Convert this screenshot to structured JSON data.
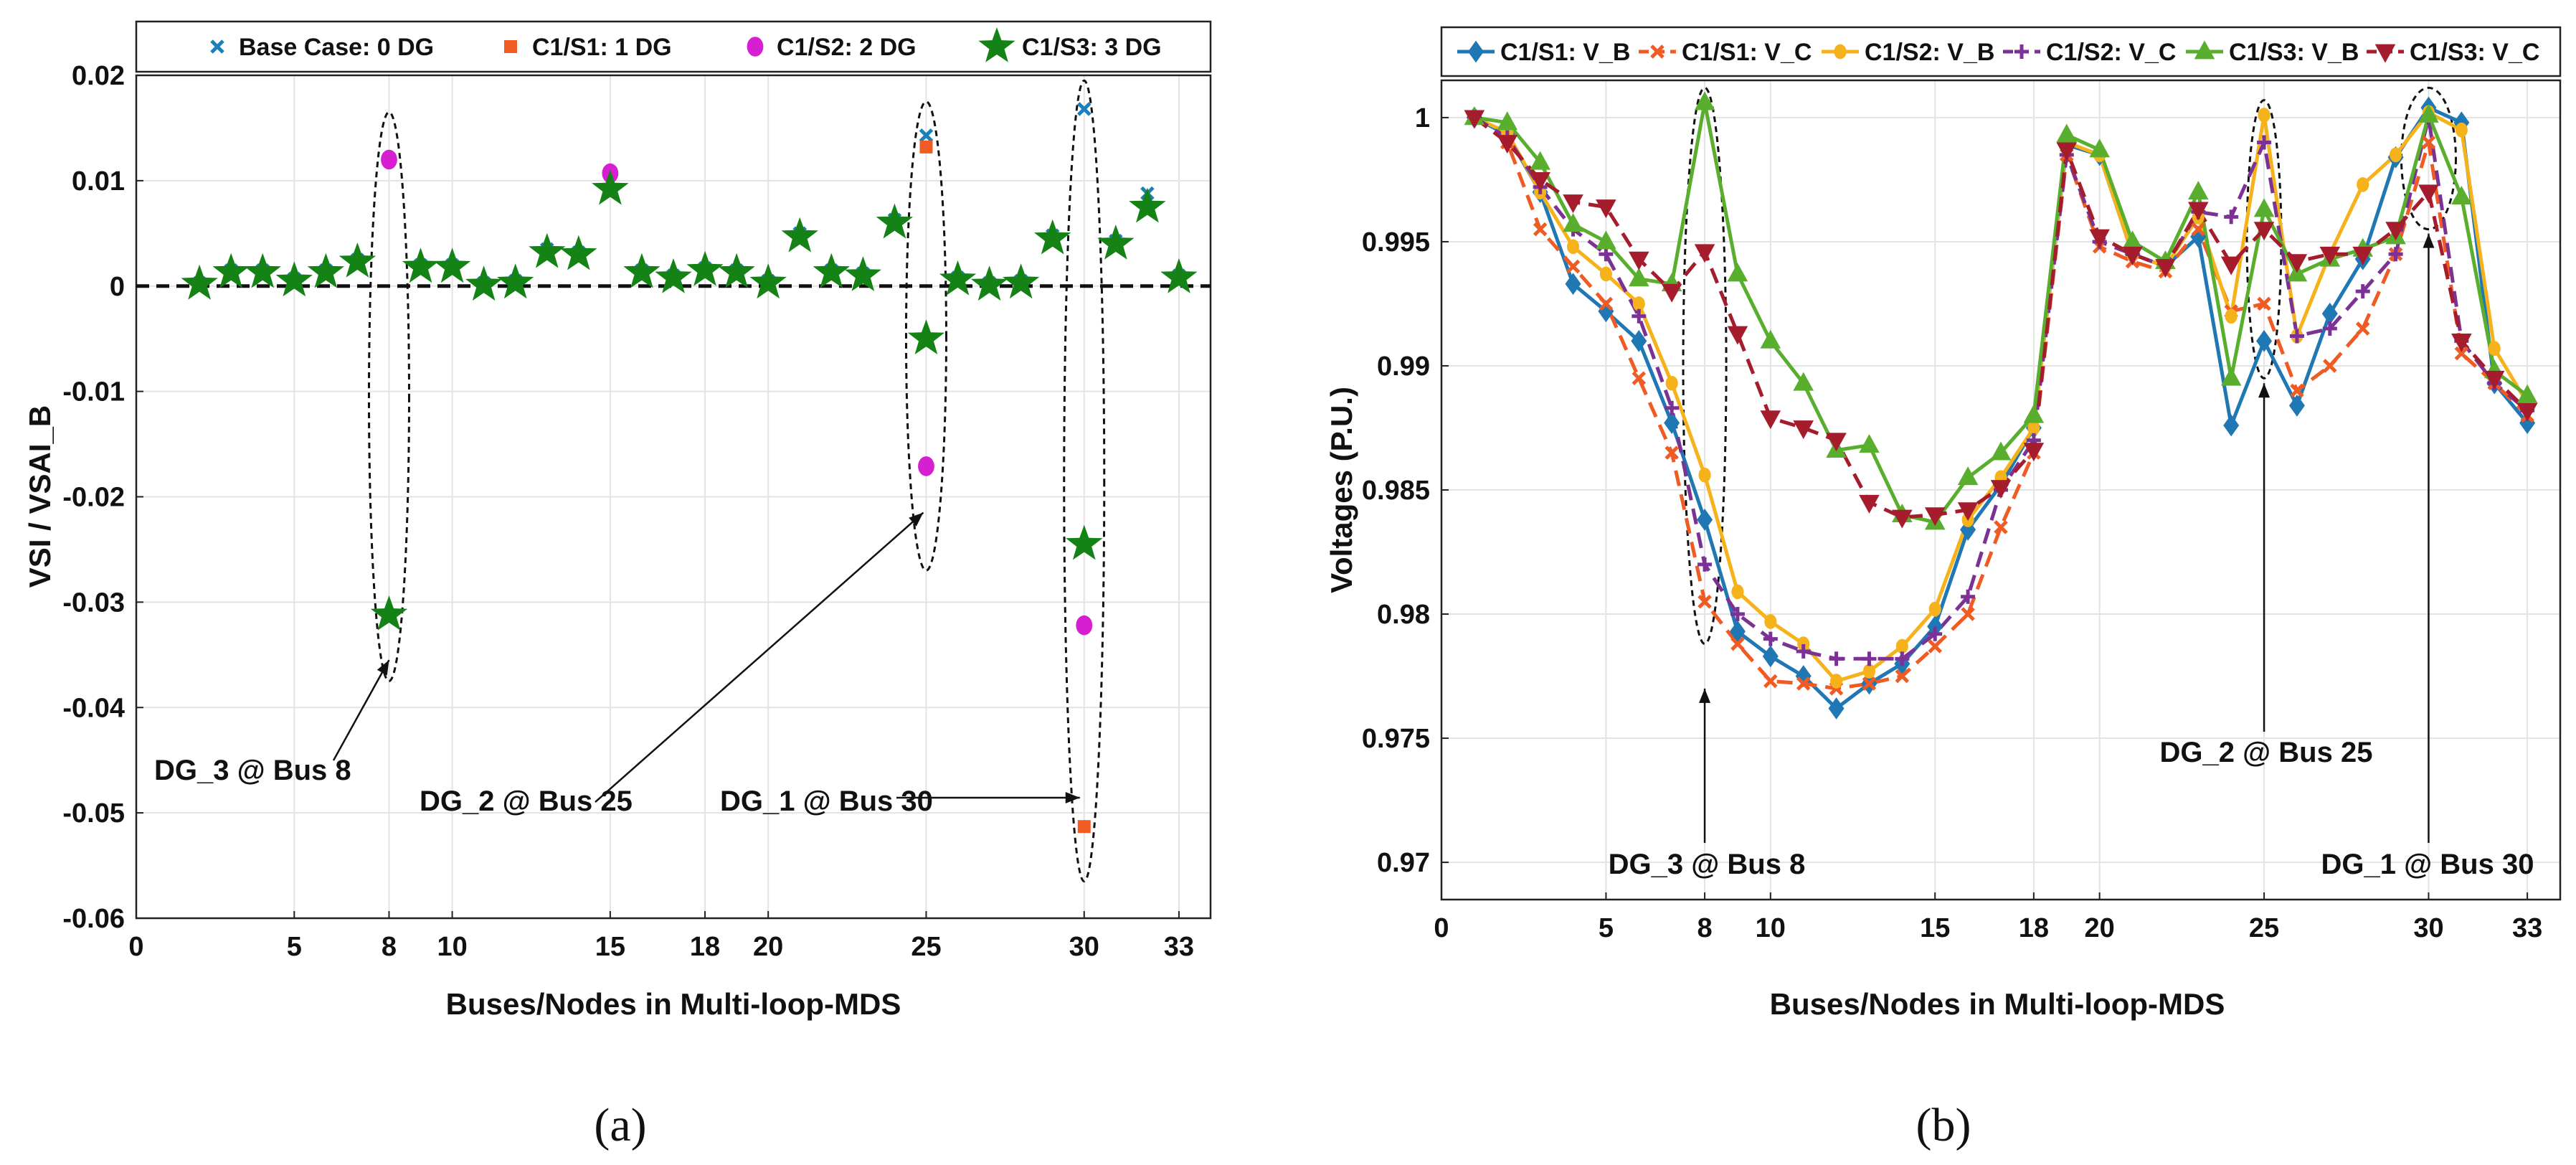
{
  "captions": {
    "a": "(a)",
    "b": "(b)"
  },
  "annotations_a": [
    "DG_3 @ Bus 8",
    "DG_2 @ Bus 25",
    "DG_1 @ Bus 30"
  ],
  "annotations_b": [
    "DG_3 @ Bus 8",
    "DG_2 @ Bus 25",
    "DG_1 @ Bus 30"
  ],
  "colors": {
    "blue": "#1f77b4",
    "orange": "#f05a23",
    "magenta": "#d61fd0",
    "green": "#148214",
    "yellow": "#f5b21b",
    "purple": "#7b3294",
    "lgreen": "#5aae2e",
    "red": "#a51d2d",
    "cyan": "#1d7fb8"
  },
  "chart_data": [
    {
      "type": "scatter",
      "xlabel": "Buses/Nodes in Multi-loop-MDS",
      "ylabel": "VSI / VSAI_B",
      "xlim": [
        0,
        34
      ],
      "ylim": [
        -0.06,
        0.02
      ],
      "xticks": [
        0,
        5,
        8,
        10,
        15,
        18,
        20,
        25,
        30,
        33
      ],
      "yticks": [
        -0.06,
        -0.05,
        -0.04,
        -0.03,
        -0.02,
        -0.01,
        0,
        0.01,
        0.02
      ],
      "ytick_labels": [
        "-0.06",
        "-0.05",
        "-0.04",
        "-0.03",
        "-0.02",
        "-0.01",
        "0",
        "0.01",
        "0.02"
      ],
      "reference_line": 0,
      "series": [
        {
          "name": "Base Case: 0 DG",
          "marker": "x",
          "color": "#1d7fb8",
          "x": [
            2,
            3,
            4,
            5,
            6,
            7,
            8,
            9,
            10,
            11,
            12,
            13,
            14,
            15,
            16,
            17,
            18,
            19,
            20,
            21,
            22,
            23,
            24,
            25,
            26,
            27,
            28,
            29,
            30,
            31,
            32,
            33
          ],
          "y": [
            0.0003,
            0.0015,
            0.0015,
            0.0007,
            0.0015,
            0.0025,
            0.0121,
            0.002,
            0.002,
            0.0003,
            0.0005,
            0.0035,
            0.0032,
            0.0108,
            0.0015,
            0.001,
            0.0017,
            0.0015,
            0.0005,
            0.005,
            0.0015,
            0.0012,
            0.0063,
            0.0143,
            0.0008,
            0.0003,
            0.0005,
            0.0048,
            0.0168,
            0.0043,
            0.0088,
            0.001
          ]
        },
        {
          "name": "C1/S1: 1 DG",
          "marker": "square",
          "color": "#f05a23",
          "x": [
            25,
            30
          ],
          "y": [
            0.0132,
            -0.0513
          ]
        },
        {
          "name": "C1/S2: 2 DG",
          "marker": "circle",
          "color": "#d61fd0",
          "x": [
            8,
            15,
            25,
            30
          ],
          "y": [
            0.012,
            0.0107,
            -0.0171,
            -0.0322
          ]
        },
        {
          "name": "C1/S3: 3 DG",
          "marker": "star",
          "color": "#148214",
          "x": [
            2,
            3,
            4,
            5,
            6,
            7,
            8,
            9,
            10,
            11,
            12,
            13,
            14,
            15,
            16,
            17,
            18,
            19,
            20,
            21,
            22,
            23,
            24,
            25,
            26,
            27,
            28,
            29,
            30,
            31,
            32,
            33
          ],
          "y": [
            0.0002,
            0.0013,
            0.0013,
            0.0005,
            0.0013,
            0.0023,
            -0.0312,
            0.0018,
            0.0018,
            0.0001,
            0.0003,
            0.0032,
            0.003,
            0.0092,
            0.0013,
            0.0008,
            0.0015,
            0.0013,
            0.0003,
            0.0047,
            0.0013,
            0.001,
            0.006,
            -0.005,
            0.0006,
            0.0001,
            0.0003,
            0.0045,
            -0.0245,
            0.004,
            0.0075,
            0.0008
          ]
        }
      ]
    },
    {
      "type": "line",
      "xlabel": "Buses/Nodes in Multi-loop-MDS",
      "ylabel": "Voltages (P.U.)",
      "xlim": [
        0,
        34
      ],
      "ylim": [
        0.9685,
        1.0015
      ],
      "xticks": [
        0,
        5,
        8,
        10,
        15,
        18,
        20,
        25,
        30,
        33
      ],
      "yticks": [
        0.97,
        0.975,
        0.98,
        0.985,
        0.99,
        0.995,
        1
      ],
      "ytick_labels": [
        "0.97",
        "0.975",
        "0.98",
        "0.985",
        "0.99",
        "0.995",
        "1"
      ],
      "x": [
        1,
        2,
        3,
        4,
        5,
        6,
        7,
        8,
        9,
        10,
        11,
        12,
        13,
        14,
        15,
        16,
        17,
        18,
        19,
        20,
        21,
        22,
        23,
        24,
        25,
        26,
        27,
        28,
        29,
        30,
        31,
        32,
        33
      ],
      "series": [
        {
          "name": "C1/S1: V_B",
          "marker": "diamond",
          "dash": "solid",
          "color": "#1f77b4",
          "values": [
            1.0,
            0.9993,
            0.997,
            0.9933,
            0.9922,
            0.991,
            0.9877,
            0.9838,
            0.9793,
            0.9783,
            0.9775,
            0.9762,
            0.9772,
            0.978,
            0.9795,
            0.9834,
            0.9852,
            0.9875,
            0.9989,
            0.9985,
            0.9945,
            0.994,
            0.9952,
            0.9876,
            0.991,
            0.9884,
            0.9921,
            0.9943,
            0.9984,
            1.0004,
            0.9998,
            0.9893,
            0.9877
          ]
        },
        {
          "name": "C1/S1: V_C",
          "marker": "x",
          "dash": "dash",
          "color": "#f05a23",
          "values": [
            1.0,
            0.999,
            0.9955,
            0.994,
            0.9925,
            0.9895,
            0.9865,
            0.9805,
            0.9788,
            0.9773,
            0.9772,
            0.977,
            0.9772,
            0.9775,
            0.9787,
            0.98,
            0.9835,
            0.9865,
            0.9985,
            0.9948,
            0.9942,
            0.9938,
            0.9955,
            0.9922,
            0.9925,
            0.989,
            0.99,
            0.9915,
            0.9945,
            0.999,
            0.9905,
            0.9893,
            0.988
          ]
        },
        {
          "name": "C1/S2: V_B",
          "marker": "circle",
          "dash": "solid",
          "color": "#f5b21b",
          "values": [
            1.0,
            0.9994,
            0.997,
            0.9948,
            0.9937,
            0.9925,
            0.9893,
            0.9856,
            0.9809,
            0.9797,
            0.9788,
            0.9773,
            0.9777,
            0.9787,
            0.9802,
            0.9838,
            0.9855,
            0.9875,
            0.999,
            0.9985,
            0.9945,
            0.994,
            0.996,
            0.992,
            1.0001,
            0.9912,
            0.9945,
            0.9973,
            0.9985,
            1.0002,
            0.9995,
            0.9907,
            0.9885
          ]
        },
        {
          "name": "C1/S2: V_C",
          "marker": "plus",
          "dash": "dash",
          "color": "#7b3294",
          "values": [
            1.0,
            0.9992,
            0.9972,
            0.9955,
            0.9945,
            0.992,
            0.9883,
            0.982,
            0.98,
            0.979,
            0.9785,
            0.9782,
            0.9782,
            0.9782,
            0.9792,
            0.9807,
            0.985,
            0.987,
            0.9985,
            0.995,
            0.9945,
            0.994,
            0.9962,
            0.996,
            0.999,
            0.9912,
            0.9915,
            0.993,
            0.9945,
            1.0,
            0.991,
            0.9893,
            0.9882
          ]
        },
        {
          "name": "C1/S3: V_B",
          "marker": "triangle",
          "dash": "solid",
          "color": "#5aae2e",
          "values": [
            1.0,
            0.9998,
            0.9982,
            0.9957,
            0.995,
            0.9935,
            0.9933,
            1.0006,
            0.9937,
            0.991,
            0.9893,
            0.9866,
            0.9868,
            0.984,
            0.9837,
            0.9855,
            0.9865,
            0.988,
            0.9993,
            0.9987,
            0.995,
            0.9942,
            0.997,
            0.9895,
            0.9963,
            0.9937,
            0.9943,
            0.9947,
            0.9952,
            1.0001,
            0.9968,
            0.9898,
            0.9888
          ]
        },
        {
          "name": "C1/S3: V_C",
          "marker": "triangle-down",
          "dash": "dash",
          "color": "#a51d2d",
          "values": [
            1.0,
            0.999,
            0.9975,
            0.9966,
            0.9964,
            0.9943,
            0.993,
            0.9946,
            0.9913,
            0.9879,
            0.9875,
            0.987,
            0.9845,
            0.9839,
            0.984,
            0.9842,
            0.9851,
            0.9866,
            0.9987,
            0.9952,
            0.9945,
            0.994,
            0.9963,
            0.9941,
            0.9955,
            0.9942,
            0.9945,
            0.9945,
            0.9955,
            0.997,
            0.991,
            0.9895,
            0.9882
          ]
        }
      ]
    }
  ]
}
